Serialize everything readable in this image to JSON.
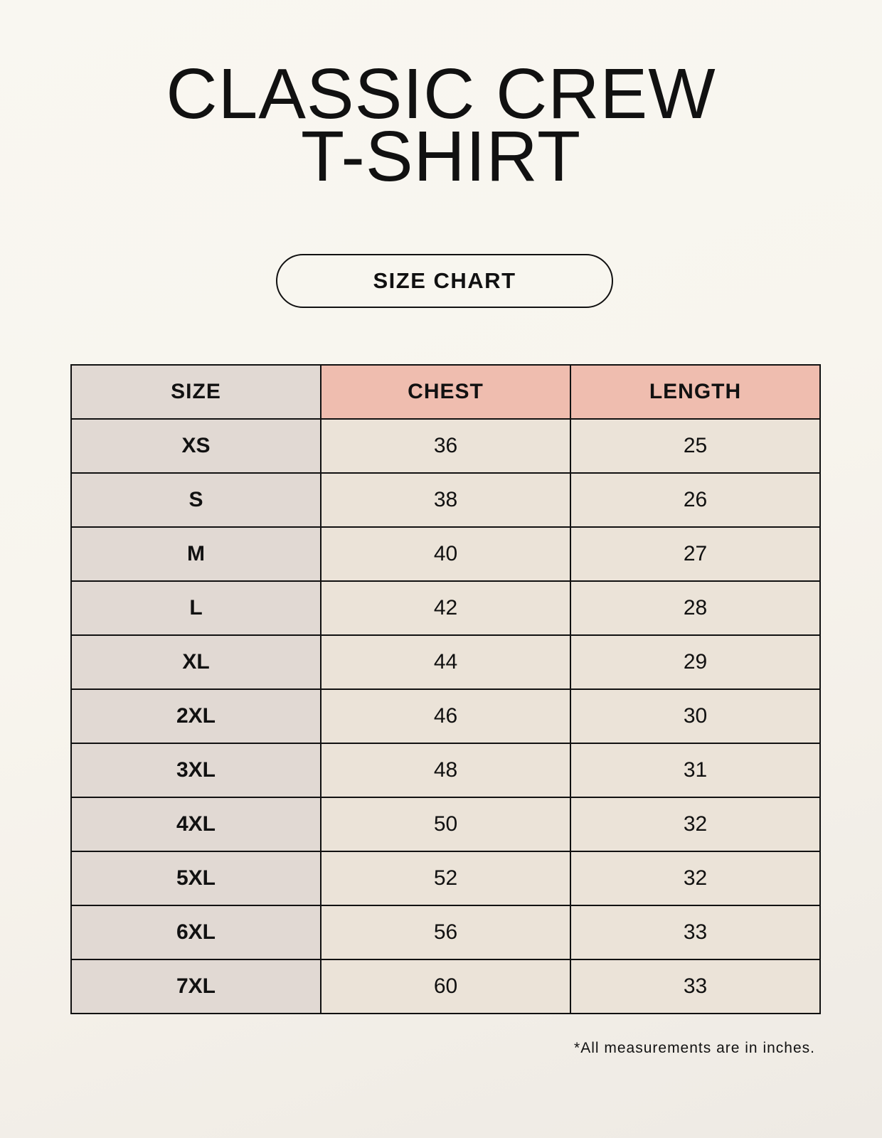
{
  "title": {
    "line1": "CLASSIC CREW",
    "line2": "T-SHIRT"
  },
  "badge": "SIZE CHART",
  "table": {
    "headers": [
      "SIZE",
      "CHEST",
      "LENGTH"
    ],
    "rows": [
      [
        "XS",
        "36",
        "25"
      ],
      [
        "S",
        "38",
        "26"
      ],
      [
        "M",
        "40",
        "27"
      ],
      [
        "L",
        "42",
        "28"
      ],
      [
        "XL",
        "44",
        "29"
      ],
      [
        "2XL",
        "46",
        "30"
      ],
      [
        "3XL",
        "48",
        "31"
      ],
      [
        "4XL",
        "50",
        "32"
      ],
      [
        "5XL",
        "52",
        "32"
      ],
      [
        "6XL",
        "56",
        "33"
      ],
      [
        "7XL",
        "60",
        "33"
      ]
    ]
  },
  "note": "*All measurements are in inches.",
  "colors": {
    "size_column": "#e1d9d3",
    "measure_header": "#efbdaf",
    "value_cell": "#ebe3d8"
  }
}
